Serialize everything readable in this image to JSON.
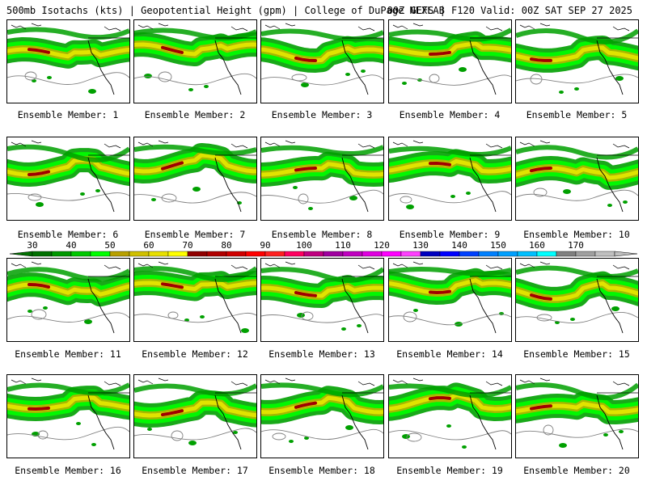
{
  "header": {
    "title": "500mb Isotachs (kts) | Geopotential Height (gpm) | College of DuPage NEXLAB",
    "run_info": "00Z GEFS | F120 Valid: 00Z SAT SEP 27 2025"
  },
  "members": [
    {
      "label": "Ensemble Member: 1"
    },
    {
      "label": "Ensemble Member: 2"
    },
    {
      "label": "Ensemble Member: 3"
    },
    {
      "label": "Ensemble Member: 4"
    },
    {
      "label": "Ensemble Member: 5"
    },
    {
      "label": "Ensemble Member: 6"
    },
    {
      "label": "Ensemble Member: 7"
    },
    {
      "label": "Ensemble Member: 8"
    },
    {
      "label": "Ensemble Member: 9"
    },
    {
      "label": "Ensemble Member: 10"
    },
    {
      "label": "Ensemble Member: 11"
    },
    {
      "label": "Ensemble Member: 12"
    },
    {
      "label": "Ensemble Member: 13"
    },
    {
      "label": "Ensemble Member: 14"
    },
    {
      "label": "Ensemble Member: 15"
    },
    {
      "label": "Ensemble Member: 16"
    },
    {
      "label": "Ensemble Member: 17"
    },
    {
      "label": "Ensemble Member: 18"
    },
    {
      "label": "Ensemble Member: 19"
    },
    {
      "label": "Ensemble Member: 20"
    }
  ],
  "legend": {
    "labels": [
      "30",
      "40",
      "50",
      "60",
      "70",
      "80",
      "90",
      "100",
      "110",
      "120",
      "130",
      "140",
      "150",
      "160",
      "170"
    ],
    "colors": [
      "#007000",
      "#009800",
      "#00c800",
      "#00ff00",
      "#b8a000",
      "#d0c000",
      "#e8e000",
      "#ffff00",
      "#900000",
      "#b00000",
      "#d00000",
      "#ff0000",
      "#ff2020",
      "#ff0060",
      "#c00080",
      "#a000a0",
      "#c000c0",
      "#e000e0",
      "#ff00ff",
      "#ff40ff",
      "#0000c0",
      "#0000ff",
      "#0040ff",
      "#0080ff",
      "#00a0ff",
      "#00c0ff",
      "#00ffff",
      "#808080",
      "#a0a0a0",
      "#c0c0c0"
    ]
  },
  "palette": {
    "dark_green": "#00a000",
    "green": "#00ff00",
    "olive": "#b8b000",
    "yellow": "#e8e800",
    "dark_red": "#a00000",
    "height_contour": "#808080",
    "coastline": "#000000"
  }
}
